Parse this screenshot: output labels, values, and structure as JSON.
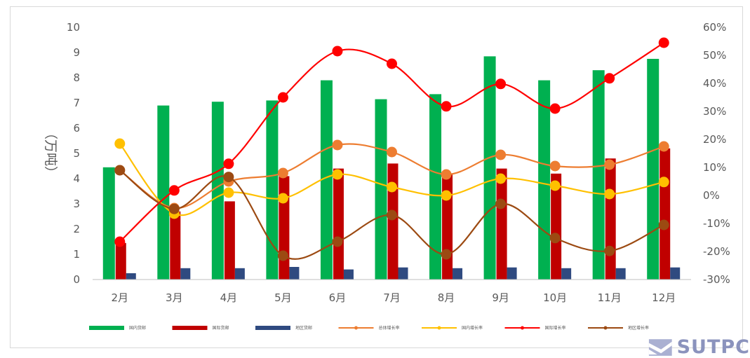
{
  "chart_data": {
    "type": "bar",
    "categories": [
      "2月",
      "3月",
      "4月",
      "5月",
      "6月",
      "7月",
      "8月",
      "9月",
      "10月",
      "11月",
      "12月"
    ],
    "ylabel": "（万吨）",
    "ylim": [
      0,
      10
    ],
    "yticks": [
      "0",
      "1",
      "2",
      "3",
      "4",
      "5",
      "6",
      "7",
      "8",
      "9",
      "10"
    ],
    "y2lim": [
      -0.3,
      0.6
    ],
    "y2ticks": [
      "-30%",
      "-20%",
      "-10%",
      "0%",
      "10%",
      "20%",
      "30%",
      "40%",
      "50%",
      "60%"
    ],
    "legend_position": "bottom",
    "bar_series": [
      {
        "name": "国内货邮",
        "color": "#00b050",
        "values": [
          4.45,
          6.9,
          7.05,
          7.1,
          7.9,
          7.15,
          7.35,
          8.85,
          7.9,
          8.3,
          8.75
        ]
      },
      {
        "name": "国际货邮",
        "color": "#c00000",
        "values": [
          1.45,
          2.7,
          3.1,
          4.1,
          4.4,
          4.6,
          4.2,
          4.4,
          4.2,
          4.8,
          5.2
        ]
      },
      {
        "name": "地区货邮",
        "color": "#2f4a80",
        "values": [
          0.25,
          0.45,
          0.45,
          0.5,
          0.4,
          0.48,
          0.45,
          0.48,
          0.45,
          0.45,
          0.48
        ]
      }
    ],
    "line_series": [
      {
        "name": "总体增长率",
        "color": "#ed7d31",
        "values": [
          0.09,
          -0.045,
          0.05,
          0.08,
          0.18,
          0.155,
          0.075,
          0.145,
          0.105,
          0.11,
          0.175
        ]
      },
      {
        "name": "国内增长率",
        "color": "#ffc000",
        "values": [
          0.185,
          -0.065,
          0.01,
          -0.01,
          0.075,
          0.03,
          0.0,
          0.06,
          0.035,
          0.005,
          0.048
        ]
      },
      {
        "name": "国际增长率",
        "color": "#ff0000",
        "values": [
          -0.165,
          0.018,
          0.113,
          0.35,
          0.515,
          0.47,
          0.318,
          0.398,
          0.31,
          0.418,
          0.545
        ]
      },
      {
        "name": "地区增长率",
        "color": "#9c4a12",
        "values": [
          0.09,
          -0.048,
          0.066,
          -0.215,
          -0.165,
          -0.07,
          -0.21,
          -0.03,
          -0.152,
          -0.198,
          -0.105
        ]
      }
    ]
  },
  "watermark": {
    "text": "SUTPC"
  }
}
